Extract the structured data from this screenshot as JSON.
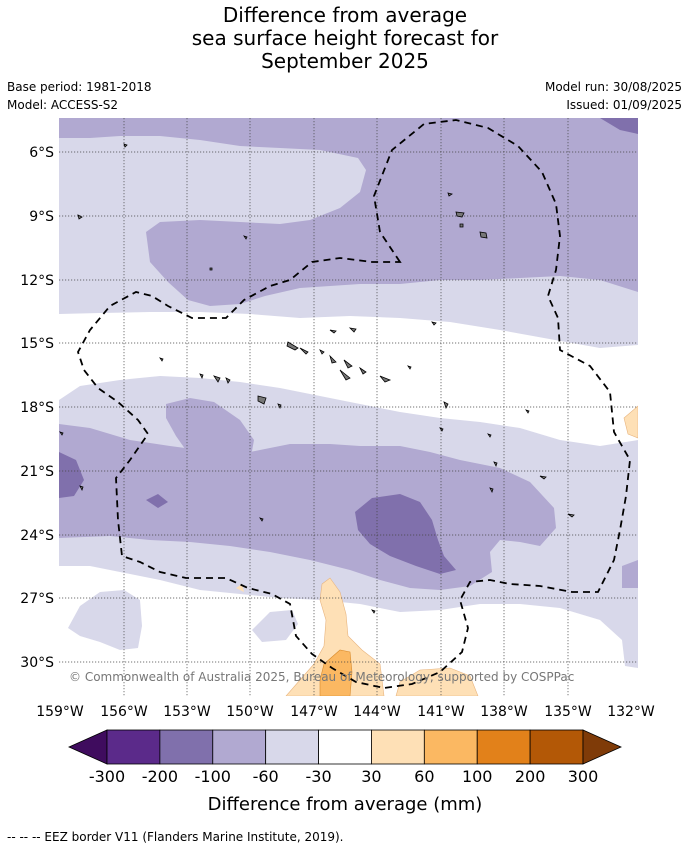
{
  "title": [
    "Difference from average",
    "sea surface height forecast for",
    "September 2025"
  ],
  "base_period": "Base period: 1981-2018",
  "model": "Model: ACCESS-S2",
  "model_run": "Model run: 30/08/2025",
  "issued": "Issued: 01/09/2025",
  "copyright": "© Commonwealth of Australia 2025, Bureau of Meteorology, supported by COSPPac",
  "lat_ticks": [
    "6°S",
    "9°S",
    "12°S",
    "15°S",
    "18°S",
    "21°S",
    "24°S",
    "27°S",
    "30°S"
  ],
  "lon_ticks": [
    "159°W",
    "156°W",
    "153°W",
    "150°W",
    "147°W",
    "144°W",
    "141°W",
    "138°W",
    "135°W",
    "132°W"
  ],
  "colorbar": {
    "label": "Difference from average (mm)",
    "ticks": [
      "-300",
      "-200",
      "-100",
      "-60",
      "-30",
      "30",
      "60",
      "100",
      "200",
      "300"
    ],
    "colors": [
      "#3f0c5e",
      "#5b2a8a",
      "#8070ac",
      "#b1a9d1",
      "#d8d8ea",
      "#ffffff",
      "#fee0b6",
      "#fbb862",
      "#e2811a",
      "#b35806",
      "#7f3b08"
    ]
  },
  "footnote": "--  --  -- EEZ border V11 (Flanders Marine Institute, 2019).",
  "map_colors": {
    "light_purple": "#d8d8ea",
    "mid_purple": "#b1a9d1",
    "dark_purple": "#8070ac",
    "light_orange": "#fee0b6",
    "mid_orange": "#fbb862"
  }
}
